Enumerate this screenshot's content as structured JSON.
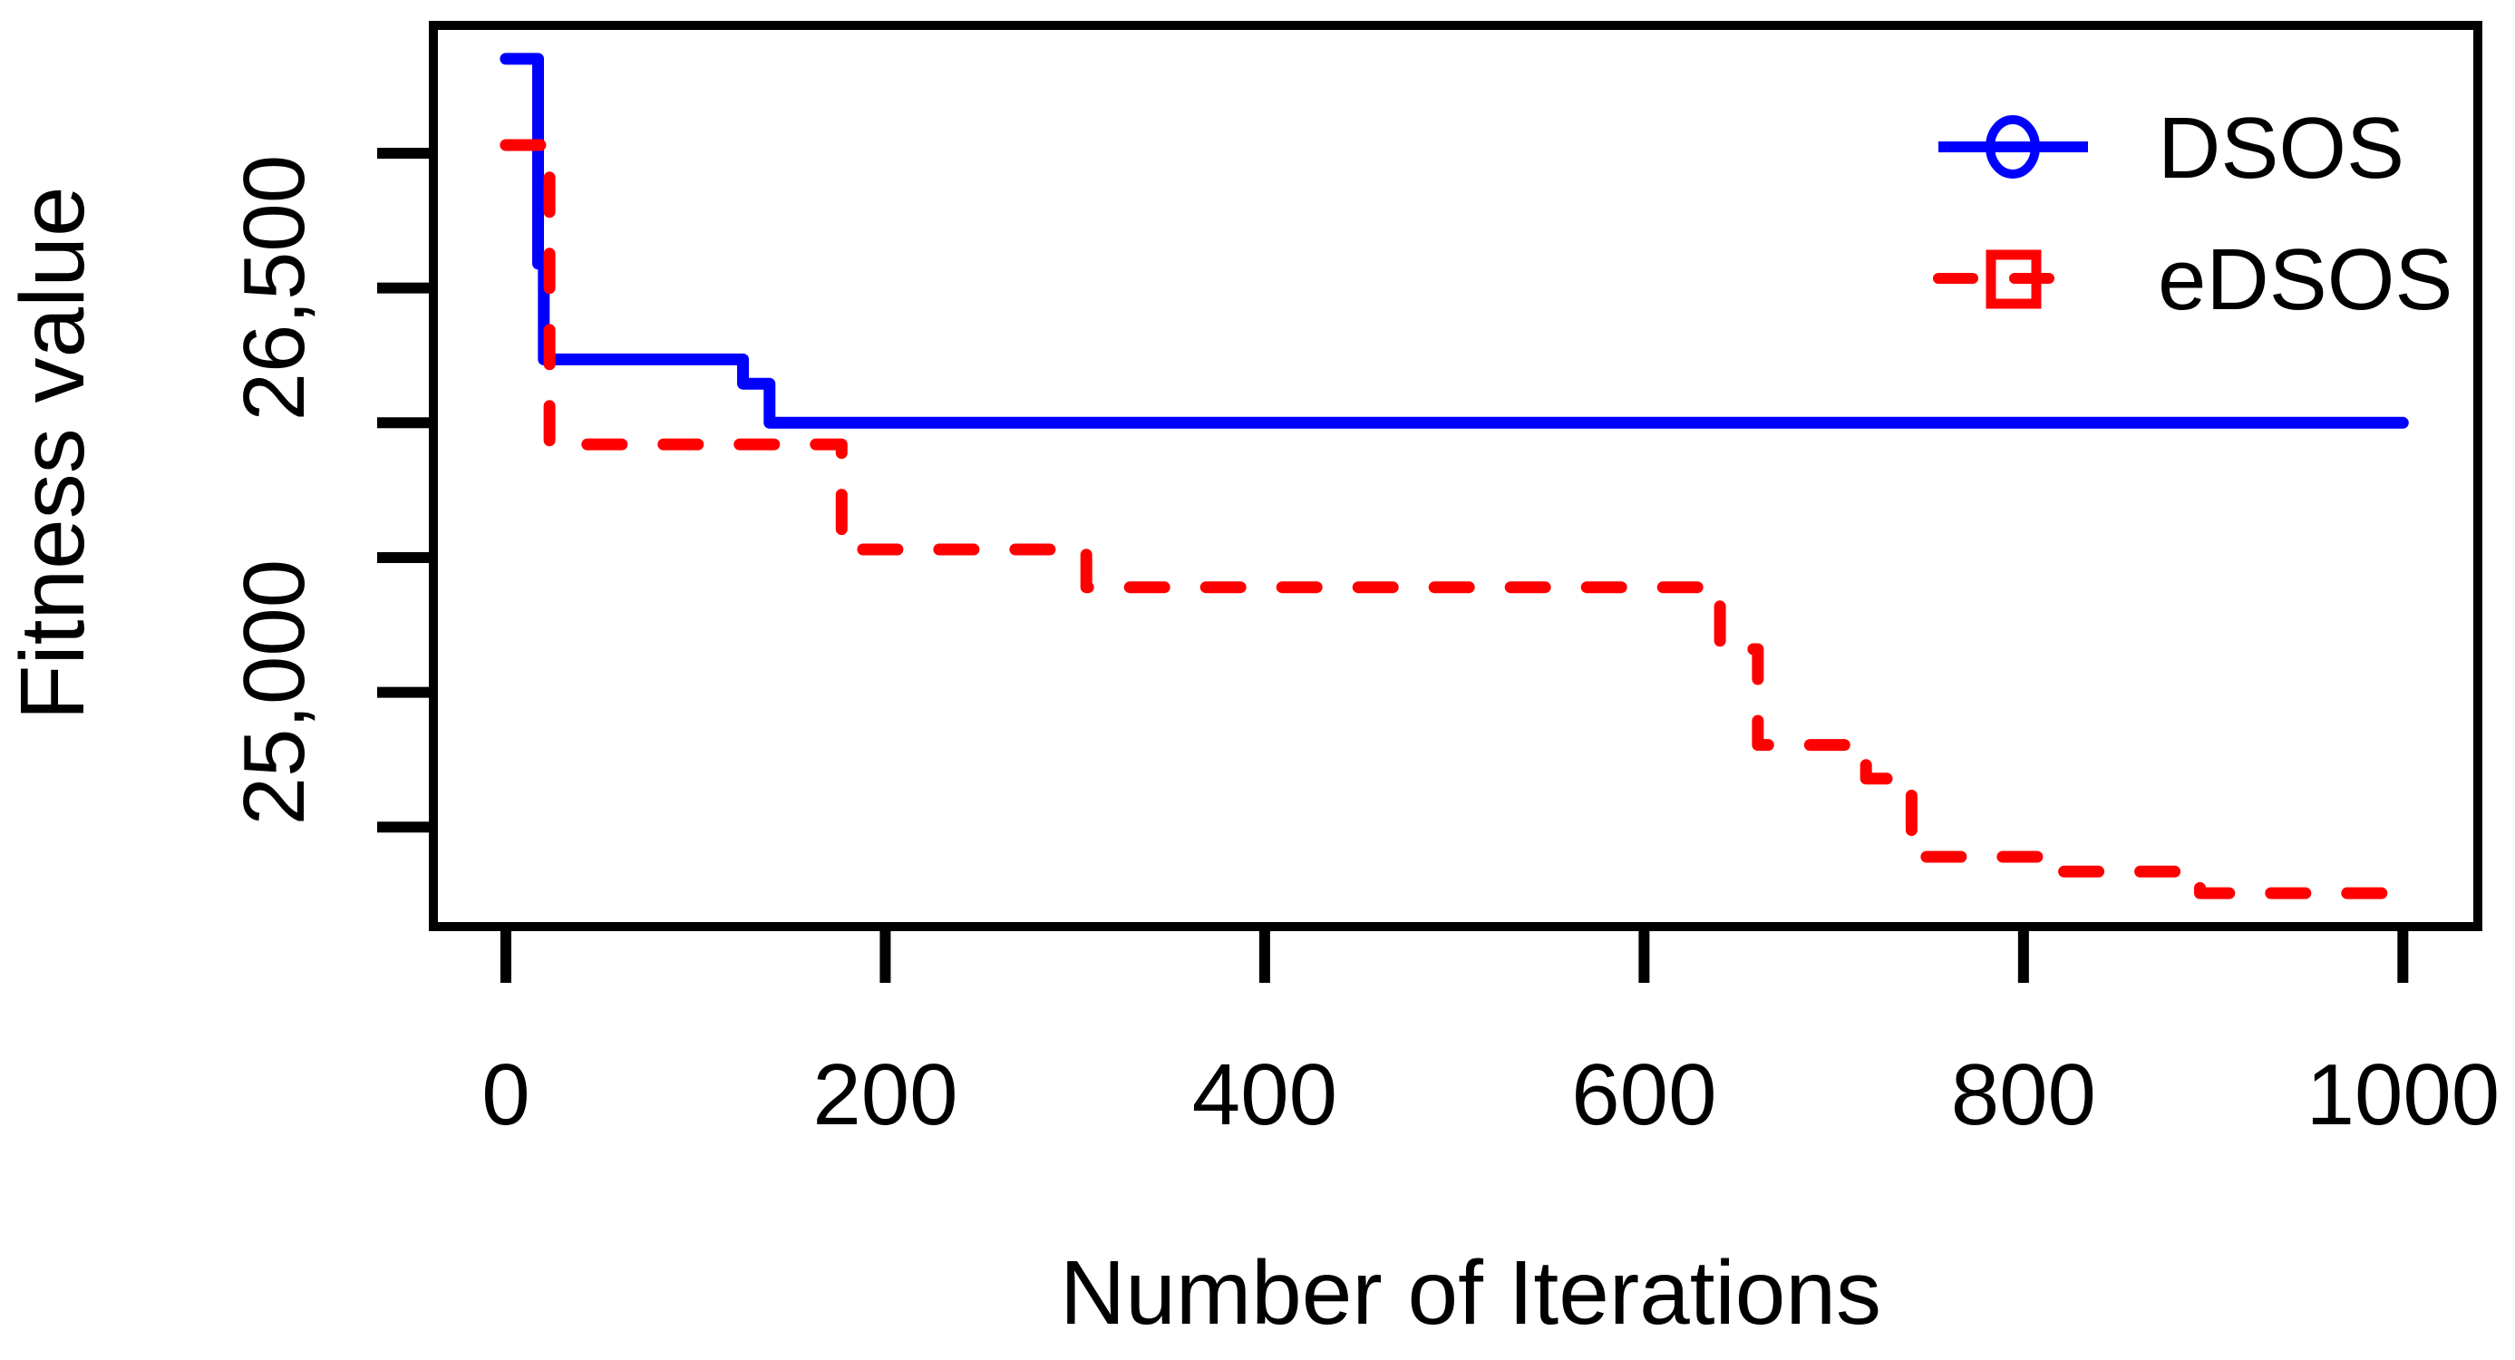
{
  "figure": {
    "background": "#ffffff",
    "axis_color": "#000000"
  },
  "chart_data": {
    "type": "line",
    "title": "",
    "xlabel": "Number of Iterations",
    "ylabel": "Fitness value",
    "xlim": [
      -38.2,
      1039.5
    ],
    "ylim": [
      24131,
      27474
    ],
    "x_ticks": [
      0,
      200,
      400,
      600,
      800,
      1000
    ],
    "x_tick_labels": [
      "0",
      "200",
      "400",
      "600",
      "800",
      "1000"
    ],
    "y_ticks": [
      24500,
      25000,
      25500,
      26000,
      26500,
      27000
    ],
    "y_tick_labels": {
      "25000": "25,000",
      "26500": "26,500"
    },
    "grid": false,
    "legend_position": "top-right",
    "series": [
      {
        "name": "DSOS",
        "color": "#0000ff",
        "line_style": "solid",
        "marker": "circle",
        "points": [
          [
            0,
            27350
          ],
          [
            17,
            27350
          ],
          [
            17,
            26590
          ],
          [
            20,
            26590
          ],
          [
            20,
            26235
          ],
          [
            125,
            26235
          ],
          [
            125,
            26145
          ],
          [
            139,
            26145
          ],
          [
            139,
            26000
          ],
          [
            1000,
            26000
          ]
        ]
      },
      {
        "name": "eDSOS",
        "color": "#ff0000",
        "line_style": "dashed",
        "marker": "square",
        "points": [
          [
            0,
            27030
          ],
          [
            23,
            27030
          ],
          [
            23,
            25920
          ],
          [
            177,
            25920
          ],
          [
            177,
            25530
          ],
          [
            306,
            25530
          ],
          [
            306,
            25390
          ],
          [
            640,
            25390
          ],
          [
            640,
            25160
          ],
          [
            660,
            25160
          ],
          [
            660,
            24805
          ],
          [
            717,
            24805
          ],
          [
            717,
            24680
          ],
          [
            741,
            24680
          ],
          [
            741,
            24390
          ],
          [
            814,
            24390
          ],
          [
            814,
            24335
          ],
          [
            893,
            24335
          ],
          [
            893,
            24255
          ],
          [
            1000,
            24255
          ]
        ]
      }
    ]
  }
}
